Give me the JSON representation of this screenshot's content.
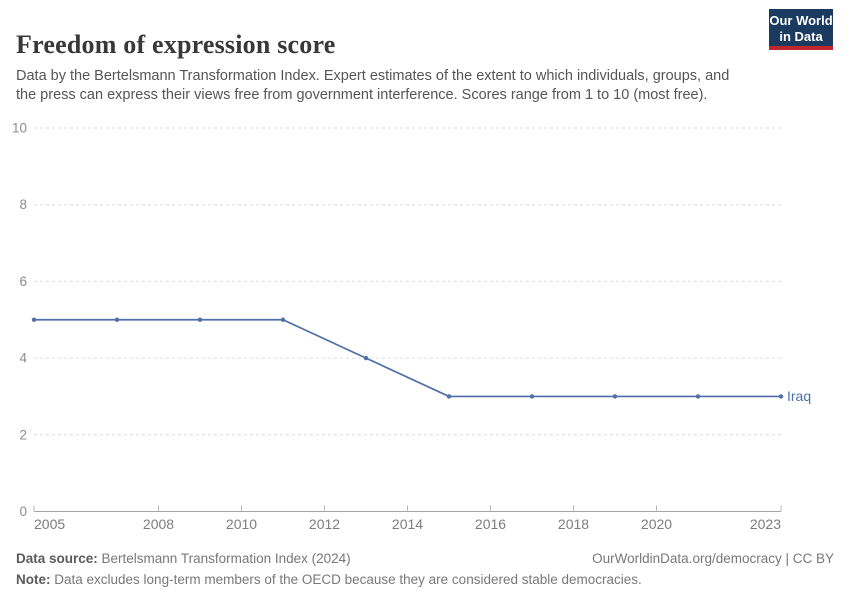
{
  "header": {
    "title": "Freedom of expression score",
    "subtitle": "Data by the Bertelsmann Transformation Index. Expert estimates of the extent to which individuals, groups, and the press can express their views free from government interference. Scores range from 1 to 10 (most free).",
    "logo": {
      "line1": "Our World",
      "line2": "in Data",
      "bg_color": "#1a3a5f",
      "stripe_color": "#c1272d"
    }
  },
  "chart_data": {
    "type": "line",
    "title": "Freedom of expression score",
    "entity_label": "Iraq",
    "x": [
      2005,
      2007,
      2009,
      2011,
      2013,
      2015,
      2017,
      2019,
      2021,
      2023
    ],
    "series": [
      {
        "name": "Iraq",
        "values": [
          5,
          5,
          5,
          5,
          4,
          3,
          3,
          3,
          3,
          3
        ],
        "color": "#4e6fa8"
      }
    ],
    "xlim": [
      2005,
      2023
    ],
    "ylim": [
      0,
      10
    ],
    "yticks": [
      0,
      2,
      4,
      6,
      8,
      10
    ],
    "xticks": [
      2005,
      2008,
      2010,
      2012,
      2014,
      2016,
      2018,
      2020,
      2023
    ],
    "grid": "horizontal-dashed",
    "legend_position": "end-of-line"
  },
  "footer": {
    "datasource_label": "Data source:",
    "datasource_value": " Bertelsmann Transformation Index (2024)",
    "credit": "OurWorldinData.org/democracy | CC BY",
    "note_label": "Note:",
    "note_value": " Data excludes long-term members of the OECD because they are considered stable democracies."
  }
}
